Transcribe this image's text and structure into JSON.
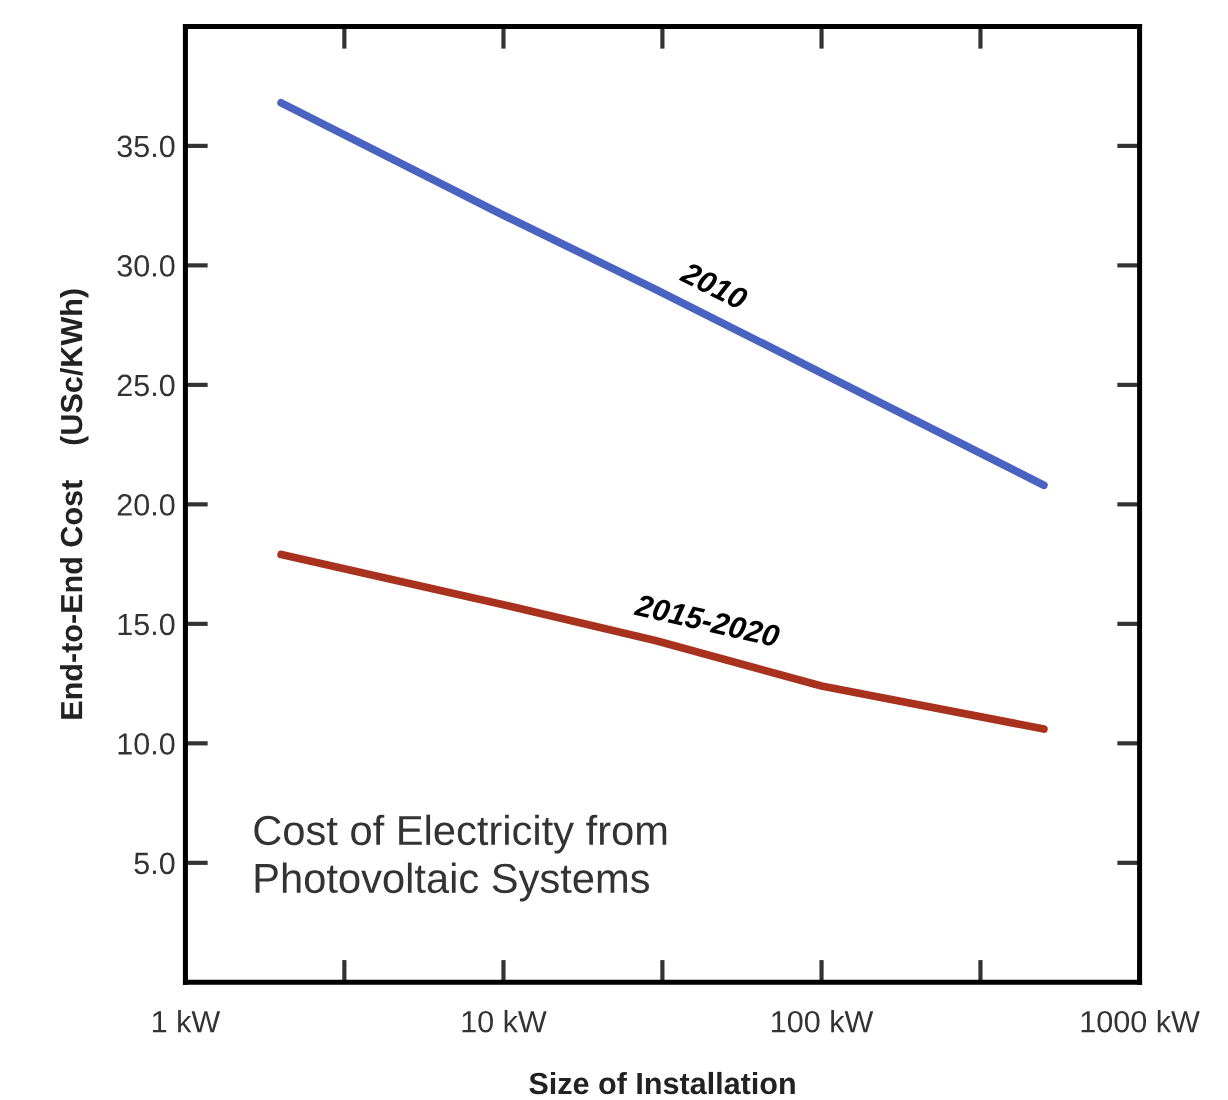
{
  "chart_data": {
    "type": "line",
    "title": "Cost of Electricity from\nPhotovoltaic Systems",
    "xlabel": "Size of Installation",
    "ylabel": "End-to-End Cost    (USc/KWh)",
    "log": "x",
    "xlim": [
      1,
      1000
    ],
    "ylim": [
      0,
      40
    ],
    "xticks": [
      {
        "value": 1,
        "label": "1 kW"
      },
      {
        "value": 3.16,
        "label": null
      },
      {
        "value": 10,
        "label": "10 kW"
      },
      {
        "value": 31.6,
        "label": null
      },
      {
        "value": 100,
        "label": "100 kW"
      },
      {
        "value": 316,
        "label": null
      },
      {
        "value": 1000,
        "label": "1000 kW"
      }
    ],
    "yticks": [
      {
        "value": 5,
        "label": "5.0"
      },
      {
        "value": 10,
        "label": "10.0"
      },
      {
        "value": 15,
        "label": "15.0"
      },
      {
        "value": 20,
        "label": "20.0"
      },
      {
        "value": 25,
        "label": "25.0"
      },
      {
        "value": 30,
        "label": "30.0"
      },
      {
        "value": 35,
        "label": "35.0"
      }
    ],
    "series": [
      {
        "color": "#4a63c0",
        "x": [
          2,
          10,
          30,
          100,
          500
        ],
        "values": [
          36.8,
          32.1,
          29.0,
          25.5,
          20.8
        ]
      },
      {
        "color": "#a8321e",
        "x": [
          2,
          10,
          30,
          100,
          500
        ],
        "values": [
          17.9,
          15.8,
          14.3,
          12.4,
          10.6
        ]
      }
    ],
    "annotations": [
      "2010",
      "2015-2020"
    ]
  }
}
